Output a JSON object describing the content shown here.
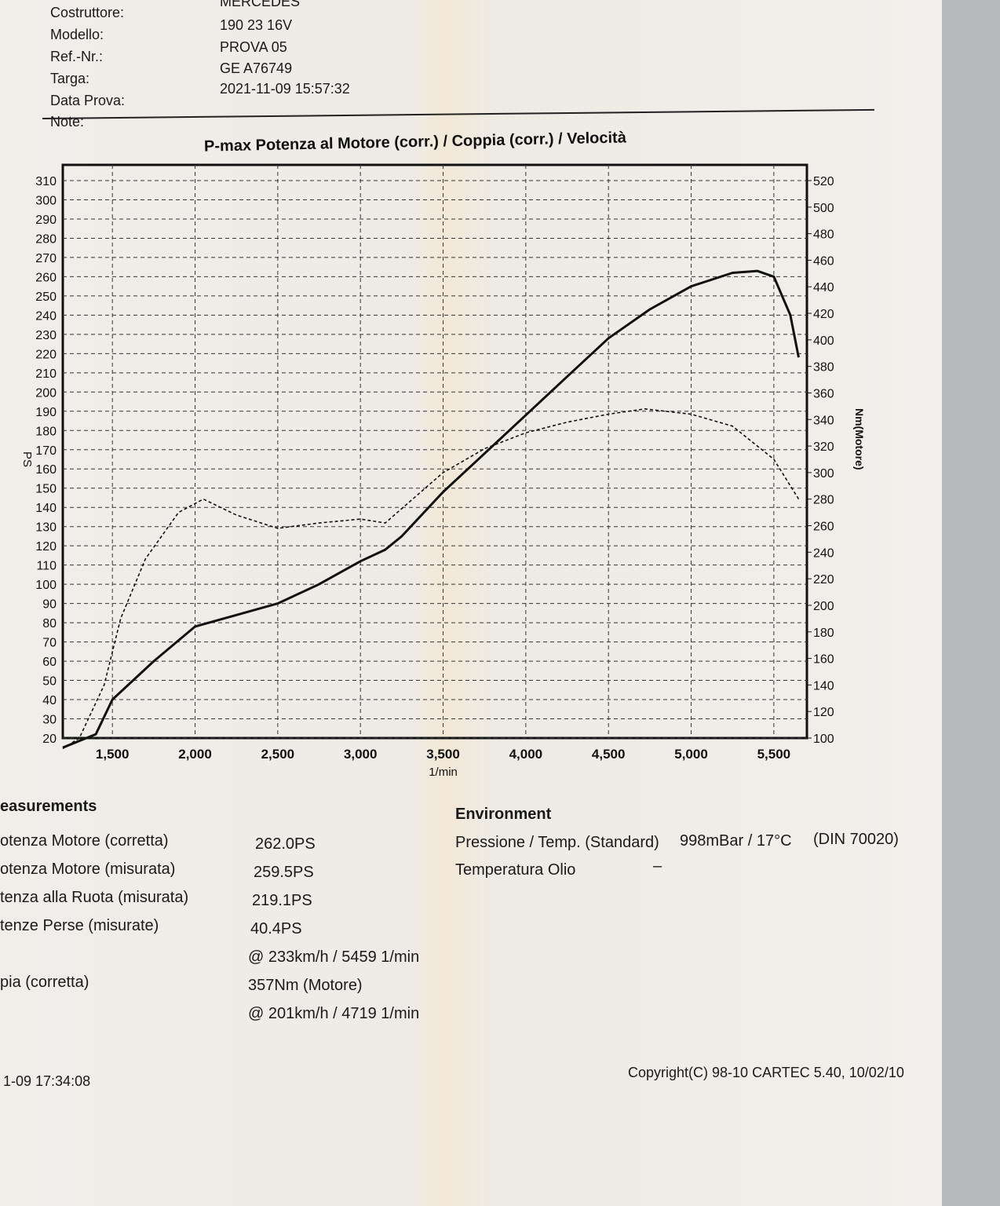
{
  "header": {
    "labels": [
      "Costruttore:",
      "Modello:",
      "Ref.-Nr.:",
      "Targa:",
      "Data Prova:",
      "Note:"
    ],
    "values": [
      "MERCEDES",
      "190 23 16V",
      "PROVA 05",
      "GE A76749",
      "2021-11-09 15:57:32"
    ]
  },
  "chart_data": {
    "type": "line",
    "title": "P-max Potenza al Motore (corr.) / Coppia (corr.) / Velocità",
    "xlabel": "1/min",
    "ylabel": "PS",
    "y2label": "Nm(Motore)",
    "xlim": [
      1200,
      5700
    ],
    "ylim": [
      20,
      310
    ],
    "y2lim": [
      100,
      520
    ],
    "grid": true,
    "xticks": [
      "1,500",
      "2,000",
      "2,500",
      "3,000",
      "3,500",
      "4,000",
      "4,500",
      "5,000",
      "5,500"
    ],
    "xtick_values": [
      1500,
      2000,
      2500,
      3000,
      3500,
      4000,
      4500,
      5000,
      5500
    ],
    "yticks": [
      310,
      300,
      290,
      280,
      270,
      260,
      250,
      240,
      230,
      220,
      210,
      200,
      190,
      180,
      170,
      160,
      150,
      140,
      130,
      120,
      110,
      100,
      90,
      80,
      70,
      60,
      50,
      40,
      30,
      20
    ],
    "y2ticks": [
      520,
      500,
      480,
      460,
      440,
      420,
      400,
      380,
      360,
      340,
      320,
      300,
      280,
      260,
      240,
      220,
      200,
      180,
      160,
      140,
      120,
      100
    ],
    "series": [
      {
        "name": "Potenza (PS)",
        "axis": "left",
        "style": "solid",
        "x": [
          1200,
          1400,
          1500,
          1750,
          2000,
          2250,
          2500,
          2750,
          3000,
          3150,
          3250,
          3500,
          3750,
          4000,
          4250,
          4500,
          4750,
          5000,
          5250,
          5400,
          5500,
          5600,
          5650
        ],
        "y": [
          15,
          22,
          40,
          60,
          78,
          84,
          90,
          100,
          112,
          118,
          125,
          148,
          168,
          188,
          208,
          228,
          243,
          255,
          262,
          263,
          260,
          240,
          218
        ]
      },
      {
        "name": "Coppia (Nm)",
        "axis": "right",
        "style": "dashed",
        "x": [
          1200,
          1300,
          1450,
          1550,
          1700,
          1900,
          2050,
          2250,
          2500,
          2750,
          3000,
          3150,
          3500,
          3750,
          4000,
          4250,
          4500,
          4719,
          5000,
          5250,
          5500,
          5650
        ],
        "y": [
          92,
          100,
          140,
          190,
          235,
          270,
          280,
          268,
          258,
          262,
          265,
          262,
          300,
          318,
          330,
          338,
          344,
          348,
          344,
          335,
          310,
          280
        ]
      }
    ]
  },
  "measurements": {
    "title": "easurements",
    "rows": [
      {
        "label": "otenza Motore (corretta)",
        "value": "262.0PS"
      },
      {
        "label": "otenza Motore (misurata)",
        "value": "259.5PS"
      },
      {
        "label": "tenza alla Ruota (misurata)",
        "value": "219.1PS"
      },
      {
        "label": "tenze Perse (misurate)",
        "value": "40.4PS"
      },
      {
        "label": "",
        "value": "@ 233km/h / 5459 1/min"
      },
      {
        "label": "pia (corretta)",
        "value": "357Nm (Motore)"
      },
      {
        "label": "",
        "value": "@ 201km/h / 4719 1/min"
      }
    ]
  },
  "environment": {
    "title": "Environment",
    "pressure_label": "Pressione / Temp. (Standard)",
    "pressure_value": "998mBar / 17°C",
    "norm": "(DIN 70020)",
    "oil_label": "Temperatura Olio",
    "oil_value": "–"
  },
  "footer": {
    "timestamp": "1-09 17:34:08",
    "copyright": "Copyright(C) 98-10 CARTEC 5.40, 10/02/10"
  }
}
